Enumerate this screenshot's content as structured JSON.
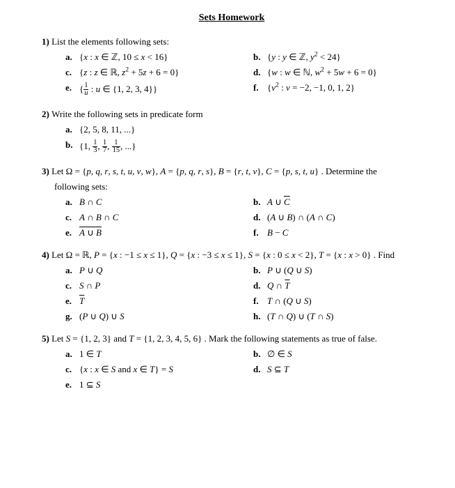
{
  "title": "Sets Homework",
  "questions": [
    {
      "num": "1)",
      "prompt": "List the elements following sets:",
      "items": [
        {
          "label": "a.",
          "expr_html": "{<i>x</i> : <i>x</i> ∈ ℤ, 10 ≤ <i>x</i> < 16}"
        },
        {
          "label": "b.",
          "expr_html": "{<i>y</i> : <i>y</i> ∈ ℤ, <i>y</i><sup>2</sup> < 24}"
        },
        {
          "label": "c.",
          "expr_html": "{<i>z</i> : <i>z</i> ∈ ℝ, <i>z</i><sup>2</sup> + 5<i>z</i> + 6 = 0}"
        },
        {
          "label": "d.",
          "expr_html": "{<i>w</i> : <i>w</i> ∈ ℕ, <i>w</i><sup>2</sup> + 5<i>w</i> + 6 = 0}"
        },
        {
          "label": "e.",
          "expr_html": "{<span class='frac'><span class='n'>1</span><span class='d'><i>u</i></span></span> : <i>u</i> ∈ {1, 2, 3, 4}}"
        },
        {
          "label": "f.",
          "expr_html": "{<i>v</i><sup>2</sup> : <i>v</i> = −2, −1, 0, 1, 2}"
        }
      ],
      "layout": "pairs"
    },
    {
      "num": "2)",
      "prompt": "Write the following sets in predicate form",
      "items": [
        {
          "label": "a.",
          "expr_html": "{2, 5, 8, 11, ...}"
        },
        {
          "label": "b.",
          "expr_html": "{1, <span class='frac'><span class='n'>1</span><span class='d'>3</span></span>, <span class='frac'><span class='n'>1</span><span class='d'>7</span></span>, <span class='frac'><span class='n'>1</span><span class='d'>15</span></span>, ...}"
        }
      ],
      "layout": "single"
    },
    {
      "num": "3)",
      "prompt_html": "Let Ω = {<i>p</i>, <i>q</i>, <i>r</i>, <i>s</i>, <i>t</i>, <i>u</i>, <i>v</i>, <i>w</i>}, <i>A</i> = {<i>p</i>, <i>q</i>, <i>r</i>, <i>s</i>}, <i>B</i> = {<i>r</i>, <i>t</i>, <i>v</i>}, <i>C</i> = {<i>p</i>, <i>s</i>, <i>t</i>, <i>u</i>} . Determine the",
      "prompt_cont": "following sets:",
      "items": [
        {
          "label": "a.",
          "expr_html": "<i>B</i> ∩ <i>C</i>"
        },
        {
          "label": "b.",
          "expr_html": "<i>A</i> ∪ <span class='over'><i>C</i></span>"
        },
        {
          "label": "c.",
          "expr_html": "<i>A</i> ∩ <i>B</i> ∩ <i>C</i>"
        },
        {
          "label": "d.",
          "expr_html": "(<i>A</i> ∪ <i>B</i>) ∩ (<i>A</i> ∩ <i>C</i>)"
        },
        {
          "label": "e.",
          "expr_html": "<span class='over'><i>A</i> ∪ <i>B</i></span>"
        },
        {
          "label": "f.",
          "expr_html": "<i>B</i> − <i>C</i>"
        }
      ],
      "layout": "pairs"
    },
    {
      "num": "4)",
      "prompt_html": "Let Ω = ℝ,  <i>P</i> = {<i>x</i> : −1 ≤ <i>x</i> ≤ 1}, <i>Q</i> = {<i>x</i> : −3 ≤ <i>x</i> ≤ 1}, <i>S</i> = {<i>x</i> : 0 ≤ <i>x</i> < 2}, <i>T</i> = {<i>x</i> : <i>x</i> > 0} . Find",
      "items": [
        {
          "label": "a.",
          "expr_html": "<i>P</i> ∪ <i>Q</i>"
        },
        {
          "label": "b.",
          "expr_html": "<i>P</i> ∪ (<i>Q</i> ∪ <i>S</i>)"
        },
        {
          "label": "c.",
          "expr_html": "<i>S</i> ∩ <i>P</i>"
        },
        {
          "label": "d.",
          "expr_html": "<i>Q</i> ∩ <span class='over'><i>T</i></span>"
        },
        {
          "label": "e.",
          "expr_html": "<span class='over'><i>T</i></span>"
        },
        {
          "label": "f.",
          "expr_html": "<i>T</i> ∩ (<i>Q</i> ∪ <i>S</i>)"
        },
        {
          "label": "g.",
          "expr_html": "(<i>P</i> ∪ <i>Q</i>) ∪ <i>S</i>"
        },
        {
          "label": "h.",
          "expr_html": "(<i>T</i> ∩ <i>Q</i>) ∪ (<i>T</i> ∩ <i>S</i>)"
        }
      ],
      "layout": "pairs"
    },
    {
      "num": "5)",
      "prompt_html": "Let <i>S</i> = {1, 2, 3} and <i>T</i> = {1, 2, 3, 4, 5, 6} . Mark the following statements as true of false.",
      "items": [
        {
          "label": "a.",
          "expr_html": "1 ∈ <i>T</i>"
        },
        {
          "label": "b.",
          "expr_html": "∅ ∈ <i>S</i>"
        },
        {
          "label": "c.",
          "expr_html": "{<i>x</i> : <i>x</i> ∈ <i>S</i> and <i>x</i> ∈ <i>T</i>} = <i>S</i>"
        },
        {
          "label": "d.",
          "expr_html": "<i>S</i> ⊆ <i>T</i>"
        },
        {
          "label": "e.",
          "expr_html": "1 ⊆ <i>S</i>"
        }
      ],
      "layout": "pairs"
    }
  ]
}
